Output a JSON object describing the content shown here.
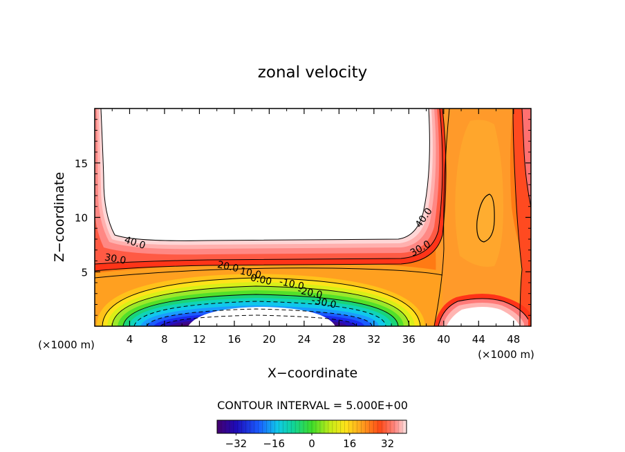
{
  "chart_data": {
    "type": "contour",
    "title": "zonal velocity",
    "xlabel": "X−coordinate",
    "ylabel": "Z−coordinate",
    "x_unit_label": "(×1000 m)",
    "y_unit_label": "(×1000 m)",
    "xlim": [
      0,
      50
    ],
    "ylim": [
      0,
      20
    ],
    "x_ticks": [
      4,
      8,
      12,
      16,
      20,
      24,
      28,
      32,
      36,
      40,
      44,
      48
    ],
    "x_tick_labels": [
      "4",
      "8",
      "12",
      "16",
      "20",
      "24",
      "28",
      "32",
      "36",
      "40",
      "44",
      "48"
    ],
    "y_ticks": [
      5,
      10,
      15
    ],
    "y_tick_labels": [
      "5",
      "10",
      "15"
    ],
    "contour_interval_text": "CONTOUR INTERVAL = 5.000E+00",
    "contour_interval": 5.0,
    "colorbar": {
      "range": [
        -40,
        40
      ],
      "ticks": [
        -32,
        -16,
        0,
        16,
        32
      ],
      "tick_labels": [
        "−32",
        "−16",
        "0",
        "16",
        "32"
      ]
    },
    "contour_labels": [
      {
        "text": "40.0",
        "x": 4.5,
        "z": 7.4
      },
      {
        "text": "30.0",
        "x": 2.3,
        "z": 5.9
      },
      {
        "text": "20.0",
        "x": 15.2,
        "z": 5.2
      },
      {
        "text": "10.0",
        "x": 17.8,
        "z": 4.6
      },
      {
        "text": "0.00",
        "x": 19.0,
        "z": 4.0
      },
      {
        "text": "-10.0",
        "x": 22.5,
        "z": 3.6
      },
      {
        "text": "-20.0",
        "x": 24.6,
        "z": 2.8
      },
      {
        "text": "-30.0",
        "x": 26.2,
        "z": 1.9
      },
      {
        "text": "40.0",
        "x": 38.0,
        "z": 9.8
      },
      {
        "text": "30.0",
        "x": 37.5,
        "z": 6.9
      }
    ],
    "features": [
      {
        "kind": "jet_core_min",
        "x": 20,
        "z": 0,
        "value_below": -40
      },
      {
        "kind": "high_region_top",
        "x_range": [
          1,
          39
        ],
        "z_range": [
          6.5,
          20
        ],
        "value_above": 45
      },
      {
        "kind": "local_max_closed_contour",
        "x": 45,
        "z": 10.7
      },
      {
        "kind": "high_region_bottom_right",
        "x_range": [
          40,
          49
        ],
        "z_range": [
          0,
          2
        ]
      }
    ]
  }
}
